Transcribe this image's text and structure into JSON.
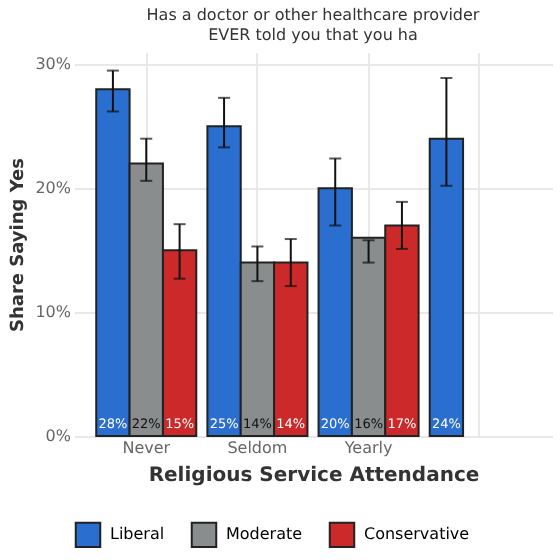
{
  "chart_data": {
    "type": "bar",
    "title": "Has a doctor or other healthcare provider EVER told you that you ha",
    "xlabel": "Religious Service Attendance",
    "ylabel": "Share Saying Yes",
    "categories": [
      "Never",
      "Seldom",
      "Yearly",
      null
    ],
    "series": [
      {
        "name": "Liberal",
        "color": "#2a6fcf",
        "values": [
          28,
          25,
          20,
          24
        ],
        "value_labels": [
          "28%",
          "25%",
          "20%",
          "24%"
        ],
        "errors": [
          [
            26.2,
            29.5
          ],
          [
            23.3,
            27.3
          ],
          [
            17.0,
            22.4
          ],
          [
            20.2,
            28.9
          ]
        ]
      },
      {
        "name": "Moderate",
        "color": "#8a8d8d",
        "values": [
          22,
          14,
          16,
          null
        ],
        "value_labels": [
          "22%",
          "14%",
          "16%",
          null
        ],
        "errors": [
          [
            20.6,
            24.0
          ],
          [
            12.5,
            15.3
          ],
          [
            14.0,
            15.8
          ],
          null
        ]
      },
      {
        "name": "Conservative",
        "color": "#cc2a2a",
        "values": [
          15,
          14,
          17,
          null
        ],
        "value_labels": [
          "15%",
          "14%",
          "17%",
          null
        ],
        "errors": [
          [
            12.7,
            17.1
          ],
          [
            12.1,
            15.9
          ],
          [
            15.1,
            18.9
          ],
          null
        ]
      }
    ],
    "ylim": [
      0,
      31
    ],
    "yticks": [
      {
        "value": 0,
        "label": "0%"
      },
      {
        "value": 10,
        "label": "10%"
      },
      {
        "value": 20,
        "label": "20%"
      },
      {
        "value": 30,
        "label": "30%"
      }
    ],
    "grid": true,
    "legend": "bottom"
  }
}
